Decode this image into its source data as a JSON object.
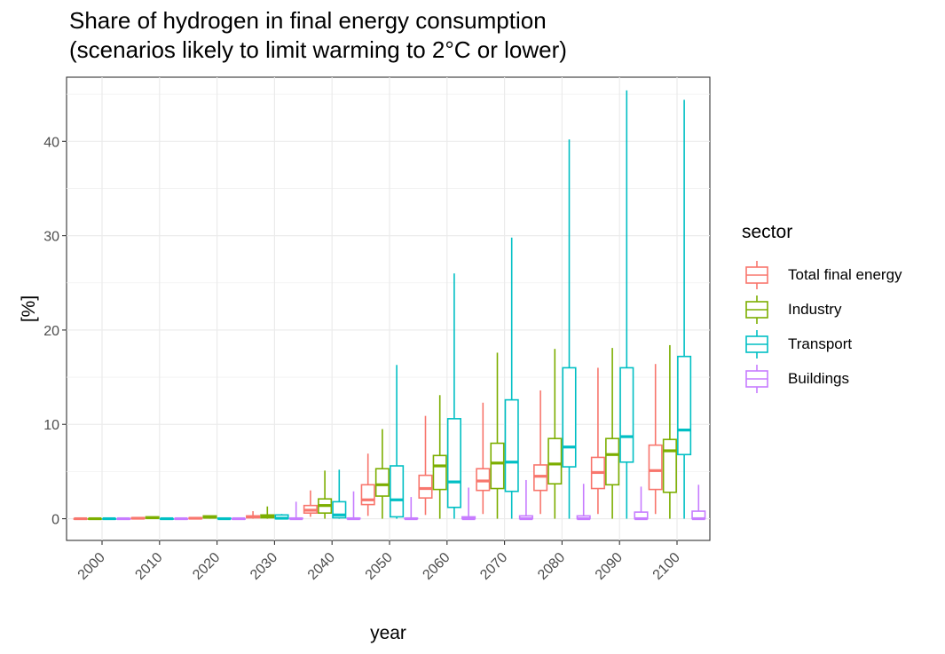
{
  "chart_data": {
    "type": "boxplot",
    "title": "Share of hydrogen in final energy consumption",
    "subtitle": "(scenarios likely to limit warming to 2°C or lower)",
    "xlabel": "year",
    "ylabel": "[%]",
    "ylim": [
      -2.3,
      46.8
    ],
    "yticks": [
      0,
      10,
      20,
      30,
      40
    ],
    "categories": [
      "2000",
      "2010",
      "2020",
      "2030",
      "2040",
      "2050",
      "2060",
      "2070",
      "2080",
      "2090",
      "2100"
    ],
    "legend_title": "sector",
    "legend_position": "right",
    "grid": true,
    "series": [
      {
        "name": "Total final energy",
        "color": "#F8766D",
        "boxes": [
          {
            "min": 0,
            "q1": 0,
            "median": 0,
            "q3": 0,
            "max": 0
          },
          {
            "min": 0,
            "q1": 0,
            "median": 0.05,
            "q3": 0.1,
            "max": 0.1
          },
          {
            "min": 0,
            "q1": 0,
            "median": 0.05,
            "q3": 0.1,
            "max": 0.1
          },
          {
            "min": 0,
            "q1": 0.1,
            "median": 0.2,
            "q3": 0.3,
            "max": 0.8
          },
          {
            "min": 0.2,
            "q1": 0.6,
            "median": 0.9,
            "q3": 1.4,
            "max": 3.0
          },
          {
            "min": 0.3,
            "q1": 1.5,
            "median": 2.0,
            "q3": 3.6,
            "max": 6.9
          },
          {
            "min": 0.4,
            "q1": 2.2,
            "median": 3.2,
            "q3": 4.6,
            "max": 10.9
          },
          {
            "min": 0.5,
            "q1": 3.0,
            "median": 4.0,
            "q3": 5.3,
            "max": 12.3
          },
          {
            "min": 0.5,
            "q1": 3.0,
            "median": 4.5,
            "q3": 5.7,
            "max": 13.6
          },
          {
            "min": 0.5,
            "q1": 3.2,
            "median": 4.9,
            "q3": 6.5,
            "max": 16.0
          },
          {
            "min": 0.5,
            "q1": 3.1,
            "median": 5.1,
            "q3": 7.8,
            "max": 16.4
          }
        ]
      },
      {
        "name": "Industry",
        "color": "#7CAE00",
        "boxes": [
          {
            "min": 0,
            "q1": 0,
            "median": 0,
            "q3": 0,
            "max": 0
          },
          {
            "min": 0,
            "q1": 0.05,
            "median": 0.1,
            "q3": 0.2,
            "max": 0.2
          },
          {
            "min": 0,
            "q1": 0.1,
            "median": 0.15,
            "q3": 0.3,
            "max": 0.3
          },
          {
            "min": 0,
            "q1": 0.1,
            "median": 0.2,
            "q3": 0.4,
            "max": 1.3
          },
          {
            "min": 0,
            "q1": 0.6,
            "median": 1.4,
            "q3": 2.1,
            "max": 5.1
          },
          {
            "min": 0,
            "q1": 2.4,
            "median": 3.6,
            "q3": 5.3,
            "max": 9.5
          },
          {
            "min": 0,
            "q1": 3.1,
            "median": 5.6,
            "q3": 6.7,
            "max": 13.1
          },
          {
            "min": 0,
            "q1": 3.2,
            "median": 5.9,
            "q3": 8.0,
            "max": 17.6
          },
          {
            "min": 0,
            "q1": 3.7,
            "median": 5.8,
            "q3": 8.5,
            "max": 18.0
          },
          {
            "min": 0,
            "q1": 3.6,
            "median": 6.8,
            "q3": 8.5,
            "max": 18.1
          },
          {
            "min": 0,
            "q1": 2.8,
            "median": 7.2,
            "q3": 8.4,
            "max": 18.4
          }
        ]
      },
      {
        "name": "Transport",
        "color": "#00BFC4",
        "boxes": [
          {
            "min": 0,
            "q1": 0,
            "median": 0,
            "q3": 0,
            "max": 0
          },
          {
            "min": 0,
            "q1": 0,
            "median": 0,
            "q3": 0,
            "max": 0
          },
          {
            "min": 0,
            "q1": 0,
            "median": 0,
            "q3": 0.05,
            "max": 0.05
          },
          {
            "min": 0,
            "q1": 0,
            "median": 0.05,
            "q3": 0.4,
            "max": 0.5
          },
          {
            "min": 0,
            "q1": 0.1,
            "median": 0.4,
            "q3": 1.8,
            "max": 5.2
          },
          {
            "min": 0,
            "q1": 0.2,
            "median": 2.0,
            "q3": 5.6,
            "max": 16.3
          },
          {
            "min": 0,
            "q1": 1.2,
            "median": 3.9,
            "q3": 10.6,
            "max": 26.0
          },
          {
            "min": 0,
            "q1": 2.9,
            "median": 6.0,
            "q3": 12.6,
            "max": 29.8
          },
          {
            "min": 0,
            "q1": 5.5,
            "median": 7.6,
            "q3": 16.0,
            "max": 40.2
          },
          {
            "min": 0,
            "q1": 6.0,
            "median": 8.7,
            "q3": 16.0,
            "max": 45.4
          },
          {
            "min": 0,
            "q1": 6.8,
            "median": 9.4,
            "q3": 17.2,
            "max": 44.4
          }
        ]
      },
      {
        "name": "Buildings",
        "color": "#C77CFF",
        "boxes": [
          {
            "min": 0,
            "q1": 0,
            "median": 0,
            "q3": 0,
            "max": 0
          },
          {
            "min": 0,
            "q1": 0,
            "median": 0,
            "q3": 0,
            "max": 0
          },
          {
            "min": 0,
            "q1": 0,
            "median": 0,
            "q3": 0,
            "max": 0
          },
          {
            "min": 0,
            "q1": 0,
            "median": 0,
            "q3": 0.05,
            "max": 1.8
          },
          {
            "min": 0,
            "q1": 0,
            "median": 0,
            "q3": 0.05,
            "max": 2.9
          },
          {
            "min": 0,
            "q1": 0,
            "median": 0,
            "q3": 0.05,
            "max": 2.3
          },
          {
            "min": 0,
            "q1": 0,
            "median": 0,
            "q3": 0.2,
            "max": 3.3
          },
          {
            "min": 0,
            "q1": 0,
            "median": 0,
            "q3": 0.3,
            "max": 4.1
          },
          {
            "min": 0,
            "q1": 0,
            "median": 0,
            "q3": 0.3,
            "max": 3.7
          },
          {
            "min": 0,
            "q1": 0,
            "median": 0,
            "q3": 0.7,
            "max": 3.4
          },
          {
            "min": 0,
            "q1": 0,
            "median": 0,
            "q3": 0.8,
            "max": 3.6
          }
        ]
      }
    ]
  }
}
